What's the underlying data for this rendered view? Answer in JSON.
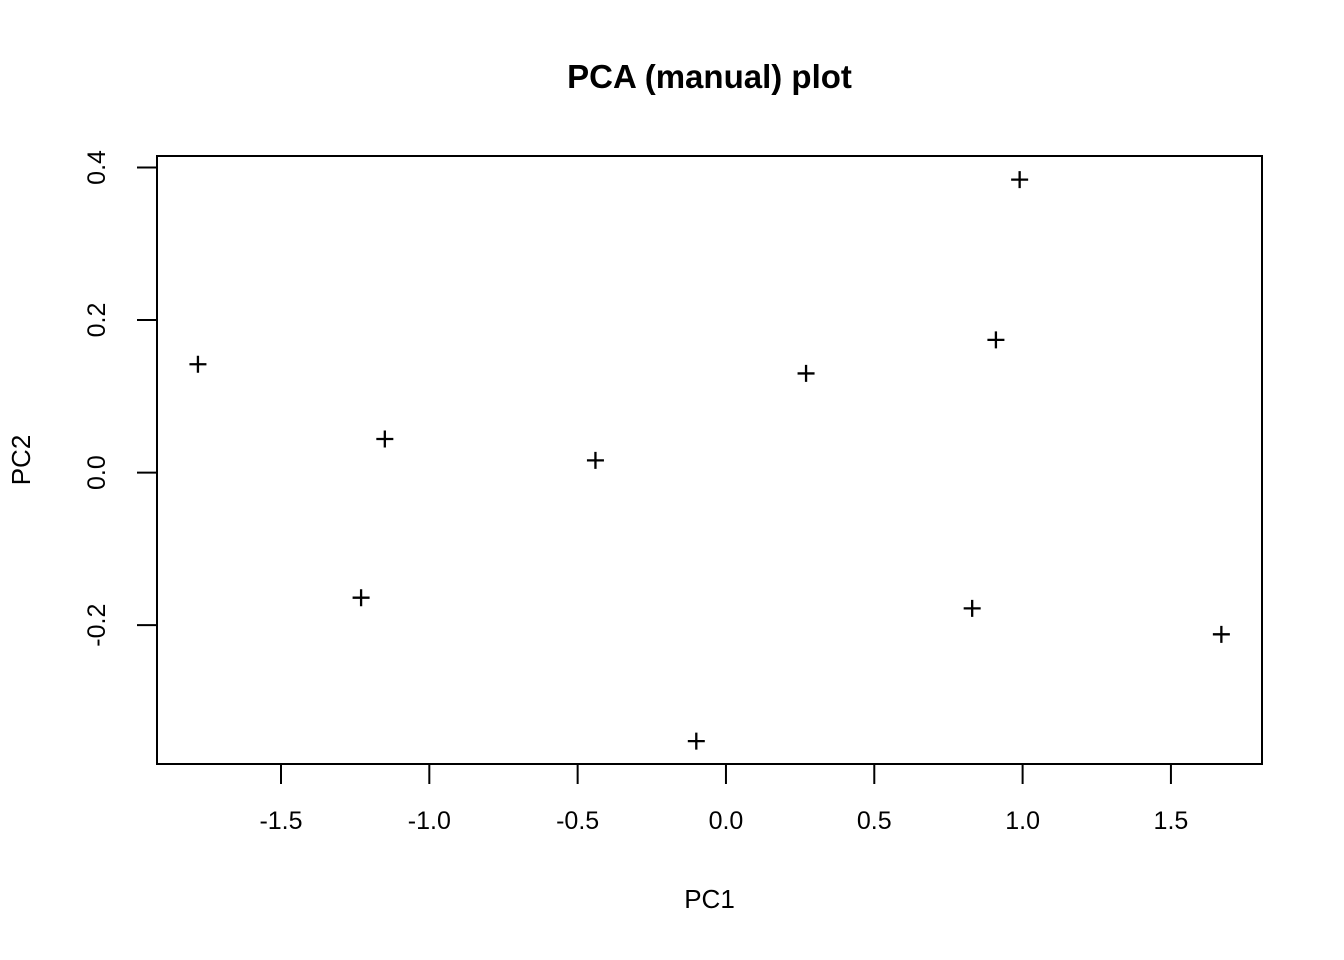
{
  "chart_data": {
    "type": "scatter",
    "title": "PCA (manual) plot",
    "xlabel": "PC1",
    "ylabel": "PC2",
    "marker": "plus",
    "marker_color": "#000000",
    "background_color": "#ffffff",
    "grid": false,
    "legend": "none",
    "xlim": [
      -1.918,
      1.807
    ],
    "ylim": [
      -0.382,
      0.415
    ],
    "x_ticks": [
      -1.5,
      -1.0,
      -0.5,
      0.0,
      0.5,
      1.0,
      1.5
    ],
    "x_tick_labels": [
      "-1.5",
      "-1.0",
      "-0.5",
      "0.0",
      "0.5",
      "1.0",
      "1.5"
    ],
    "y_ticks": [
      -0.2,
      0.0,
      0.2,
      0.4
    ],
    "y_tick_labels": [
      "-0.2",
      "0.0",
      "0.2",
      "0.4"
    ],
    "points": [
      {
        "x": -1.78,
        "y": 0.142
      },
      {
        "x": -1.23,
        "y": -0.164
      },
      {
        "x": -1.15,
        "y": 0.044
      },
      {
        "x": -0.44,
        "y": 0.016
      },
      {
        "x": -0.1,
        "y": -0.352
      },
      {
        "x": 0.27,
        "y": 0.13
      },
      {
        "x": 0.83,
        "y": -0.178
      },
      {
        "x": 0.91,
        "y": 0.174
      },
      {
        "x": 0.99,
        "y": 0.384
      },
      {
        "x": 1.67,
        "y": -0.212
      }
    ]
  }
}
